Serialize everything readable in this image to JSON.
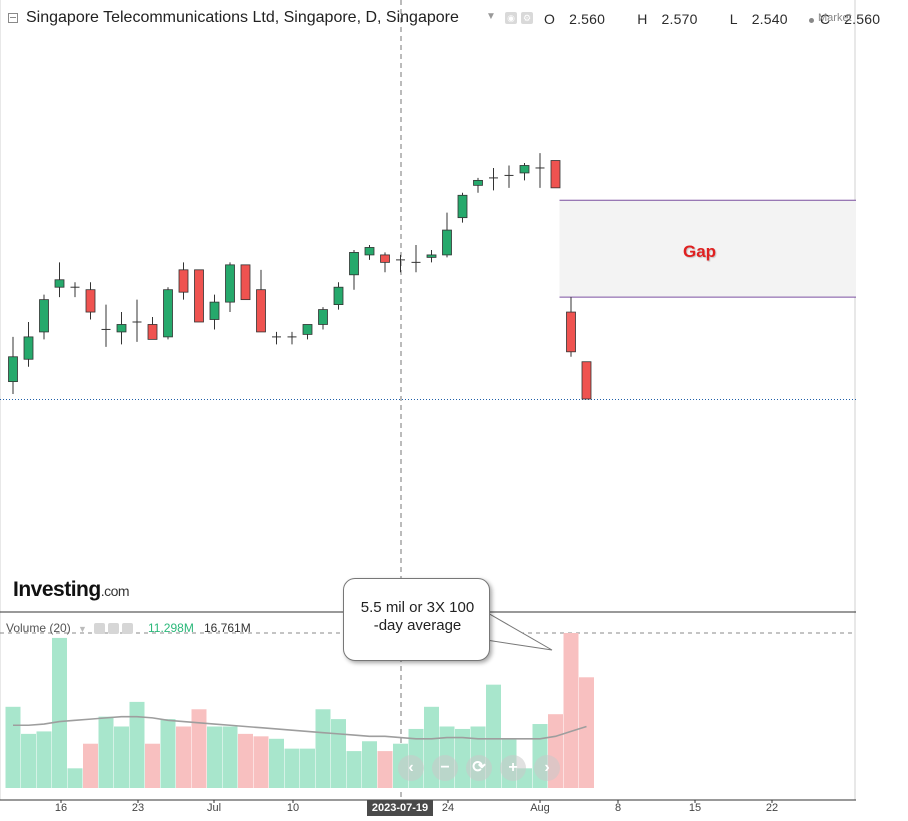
{
  "header": {
    "title": "Singapore Telecommunications Ltd, Singapore, D, Singapore",
    "open_label": "O",
    "open": "2.560",
    "high_label": "H",
    "high": "2.570",
    "low_label": "L",
    "low": "2.540",
    "close_label": "C",
    "close": "2.560",
    "right_label": "Market"
  },
  "volume_header": {
    "title": "Volume (20)",
    "value1": "11.298M",
    "value2": "16.761M"
  },
  "logo": {
    "brand": "Investing",
    "suffix": ".com"
  },
  "annotations": {
    "gap_label": "Gap",
    "callout": [
      "5.5 mil or 3X 100",
      "-day average"
    ]
  },
  "crosshair": {
    "date_label": "2023-07-19"
  },
  "nav_icons": [
    "chevron-left-icon",
    "minus-icon",
    "reset-icon",
    "plus-icon",
    "chevron-right-icon"
  ],
  "colors": {
    "up": "#26a96c",
    "down": "#ef5350",
    "up_vol": "#a8e6cc",
    "down_vol": "#f8c0c0",
    "ma_line": "#9e9e9e",
    "gap_fill": "#f3f3f3",
    "gap_border": "#7a4fa0",
    "ref_line": "#1f5fa8"
  },
  "chart_data": {
    "type": "candlestick",
    "x_ticks": [
      "16",
      "23",
      "Jul",
      "10",
      "24",
      "Aug",
      "8",
      "15",
      "22"
    ],
    "candles": [
      {
        "o": 2.512,
        "h": 2.53,
        "l": 2.507,
        "c": 2.522
      },
      {
        "o": 2.521,
        "h": 2.536,
        "l": 2.518,
        "c": 2.53
      },
      {
        "o": 2.532,
        "h": 2.547,
        "l": 2.529,
        "c": 2.545
      },
      {
        "o": 2.55,
        "h": 2.56,
        "l": 2.546,
        "c": 2.553
      },
      {
        "o": 2.55,
        "h": 2.552,
        "l": 2.546,
        "c": 2.55
      },
      {
        "o": 2.549,
        "h": 2.552,
        "l": 2.537,
        "c": 2.54
      },
      {
        "o": 2.533,
        "h": 2.543,
        "l": 2.526,
        "c": 2.533
      },
      {
        "o": 2.532,
        "h": 2.54,
        "l": 2.527,
        "c": 2.535
      },
      {
        "o": 2.536,
        "h": 2.545,
        "l": 2.528,
        "c": 2.536
      },
      {
        "o": 2.535,
        "h": 2.538,
        "l": 2.529,
        "c": 2.529
      },
      {
        "o": 2.53,
        "h": 2.55,
        "l": 2.529,
        "c": 2.549
      },
      {
        "o": 2.557,
        "h": 2.56,
        "l": 2.545,
        "c": 2.548
      },
      {
        "o": 2.557,
        "h": 2.557,
        "l": 2.536,
        "c": 2.536
      },
      {
        "o": 2.537,
        "h": 2.547,
        "l": 2.533,
        "c": 2.544
      },
      {
        "o": 2.544,
        "h": 2.56,
        "l": 2.54,
        "c": 2.559
      },
      {
        "o": 2.559,
        "h": 2.559,
        "l": 2.545,
        "c": 2.545
      },
      {
        "o": 2.549,
        "h": 2.557,
        "l": 2.532,
        "c": 2.532
      },
      {
        "o": 2.53,
        "h": 2.532,
        "l": 2.527,
        "c": 2.53
      },
      {
        "o": 2.53,
        "h": 2.532,
        "l": 2.527,
        "c": 2.53
      },
      {
        "o": 2.531,
        "h": 2.535,
        "l": 2.529,
        "c": 2.535
      },
      {
        "o": 2.535,
        "h": 2.542,
        "l": 2.533,
        "c": 2.541
      },
      {
        "o": 2.543,
        "h": 2.552,
        "l": 2.541,
        "c": 2.55
      },
      {
        "o": 2.555,
        "h": 2.565,
        "l": 2.549,
        "c": 2.564
      },
      {
        "o": 2.563,
        "h": 2.567,
        "l": 2.561,
        "c": 2.566
      },
      {
        "o": 2.563,
        "h": 2.564,
        "l": 2.556,
        "c": 2.56
      },
      {
        "o": 2.561,
        "h": 2.563,
        "l": 2.556,
        "c": 2.561
      },
      {
        "o": 2.56,
        "h": 2.567,
        "l": 2.556,
        "c": 2.56
      },
      {
        "o": 2.562,
        "h": 2.565,
        "l": 2.56,
        "c": 2.563
      },
      {
        "o": 2.563,
        "h": 2.58,
        "l": 2.562,
        "c": 2.573
      },
      {
        "o": 2.578,
        "h": 2.588,
        "l": 2.576,
        "c": 2.587
      },
      {
        "o": 2.591,
        "h": 2.594,
        "l": 2.588,
        "c": 2.593
      },
      {
        "o": 2.594,
        "h": 2.598,
        "l": 2.589,
        "c": 2.594
      },
      {
        "o": 2.595,
        "h": 2.599,
        "l": 2.59,
        "c": 2.595
      },
      {
        "o": 2.596,
        "h": 2.6,
        "l": 2.593,
        "c": 2.599
      },
      {
        "o": 2.598,
        "h": 2.604,
        "l": 2.59,
        "c": 2.598
      },
      {
        "o": 2.601,
        "h": 2.601,
        "l": 2.59,
        "c": 2.59
      },
      {
        "o": 2.54,
        "h": 2.546,
        "l": 2.522,
        "c": 2.524
      },
      {
        "o": 2.52,
        "h": 2.52,
        "l": 2.505,
        "c": 2.505
      }
    ],
    "volume_mil": [
      3.3,
      2.2,
      2.3,
      6.1,
      0.8,
      1.8,
      2.9,
      2.5,
      3.5,
      1.8,
      2.8,
      2.5,
      3.2,
      2.5,
      2.5,
      2.2,
      2.1,
      2.0,
      1.6,
      1.6,
      3.2,
      2.8,
      1.5,
      1.9,
      1.5,
      1.8,
      2.4,
      3.3,
      2.5,
      2.4,
      2.5,
      4.2,
      2.0,
      0.8,
      2.6,
      3.0,
      6.3,
      4.5
    ],
    "volume_ma_mil": [
      2.55,
      2.55,
      2.6,
      2.7,
      2.75,
      2.8,
      2.85,
      2.9,
      2.9,
      2.85,
      2.75,
      2.7,
      2.65,
      2.6,
      2.55,
      2.5,
      2.45,
      2.4,
      2.35,
      2.3,
      2.25,
      2.2,
      2.15,
      2.1,
      2.1,
      2.05,
      2.0,
      2.0,
      2.05,
      2.05,
      2.0,
      2.0,
      2.0,
      2.0,
      2.0,
      2.1,
      2.3,
      2.5
    ],
    "gap_zone": {
      "from": 2.546,
      "to": 2.585
    },
    "reference_line": 2.505,
    "volume_reference": 6.3
  }
}
